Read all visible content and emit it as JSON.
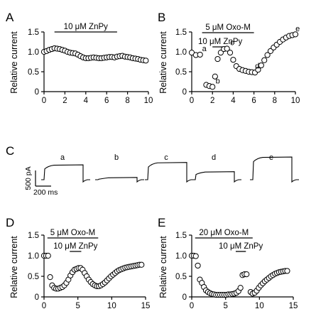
{
  "chart_data": [
    {
      "id": "A",
      "type": "scatter",
      "panel_label": "A",
      "ylabel": "Relative current",
      "xlim": [
        0,
        10
      ],
      "ylim": [
        0,
        1.5
      ],
      "xticks": [
        "0",
        "2",
        "4",
        "6",
        "8",
        "10"
      ],
      "yticks": [
        "0",
        "0.5",
        "1.0",
        "1.5"
      ],
      "annotations": [
        {
          "text": "10 μM ZnPy",
          "x_start": 1.0,
          "x_end": 7.0
        }
      ],
      "x": [
        0.0,
        0.25,
        0.5,
        0.75,
        1.0,
        1.25,
        1.5,
        1.75,
        2.0,
        2.25,
        2.5,
        2.75,
        3.0,
        3.25,
        3.5,
        3.75,
        4.0,
        4.25,
        4.5,
        4.75,
        5.0,
        5.25,
        5.5,
        5.75,
        6.0,
        6.25,
        6.5,
        6.75,
        7.0,
        7.25,
        7.5,
        7.75,
        8.0,
        8.25,
        8.5,
        8.75,
        9.0,
        9.25,
        9.5,
        9.75
      ],
      "y": [
        1.0,
        1.02,
        1.05,
        1.07,
        1.09,
        1.08,
        1.07,
        1.05,
        1.03,
        1.0,
        0.98,
        0.97,
        0.96,
        0.93,
        0.89,
        0.86,
        0.84,
        0.84,
        0.85,
        0.86,
        0.85,
        0.84,
        0.84,
        0.85,
        0.86,
        0.87,
        0.87,
        0.86,
        0.88,
        0.89,
        0.9,
        0.88,
        0.87,
        0.86,
        0.84,
        0.83,
        0.82,
        0.8,
        0.79,
        0.78
      ]
    },
    {
      "id": "B",
      "type": "scatter",
      "panel_label": "B",
      "ylabel": "Relative current",
      "xlim": [
        0,
        10
      ],
      "ylim": [
        0,
        1.5
      ],
      "xticks": [
        "0",
        "2",
        "4",
        "6",
        "8",
        "10"
      ],
      "yticks": [
        "0",
        "0.5",
        "1.0",
        "1.5"
      ],
      "annotations": [
        {
          "text": "5 μM Oxo-M",
          "x_start": 1.0,
          "x_end": 6.0
        },
        {
          "text": "10 μM ZnPy",
          "x_start": 2.0,
          "x_end": 3.5
        }
      ],
      "point_labels": [
        {
          "text": "a",
          "x": 0.8,
          "y": 0.93
        },
        {
          "text": "b",
          "x": 2.1,
          "y": 0.12
        },
        {
          "text": "c",
          "x": 3.5,
          "y": 1.08
        },
        {
          "text": "d",
          "x": 5.9,
          "y": 0.49
        },
        {
          "text": "e",
          "x": 9.8,
          "y": 1.43
        }
      ],
      "x": [
        0.0,
        0.4,
        0.8,
        1.4,
        1.7,
        2.0,
        2.25,
        2.5,
        2.8,
        3.1,
        3.4,
        3.7,
        4.0,
        4.3,
        4.6,
        4.9,
        5.2,
        5.5,
        5.8,
        6.1,
        6.4,
        6.7,
        7.0,
        7.3,
        7.6,
        7.9,
        8.2,
        8.5,
        8.8,
        9.1,
        9.4,
        9.7,
        10.0
      ],
      "y": [
        0.98,
        0.92,
        0.93,
        0.17,
        0.14,
        0.12,
        0.38,
        0.82,
        0.98,
        1.07,
        1.08,
        0.98,
        0.8,
        0.64,
        0.57,
        0.54,
        0.52,
        0.5,
        0.49,
        0.48,
        0.55,
        0.66,
        0.79,
        0.92,
        1.02,
        1.11,
        1.18,
        1.25,
        1.31,
        1.36,
        1.4,
        1.42,
        1.44
      ]
    },
    {
      "id": "C",
      "type": "line",
      "panel_label": "C",
      "scale_bar": {
        "y_label": "500 pA",
        "x_label": "200 ms"
      },
      "traces": [
        {
          "label": "a",
          "amplitude": 0.93
        },
        {
          "label": "b",
          "amplitude": 0.12
        },
        {
          "label": "c",
          "amplitude": 1.08
        },
        {
          "label": "d",
          "amplitude": 0.49
        },
        {
          "label": "e",
          "amplitude": 1.43
        }
      ]
    },
    {
      "id": "D",
      "type": "scatter",
      "panel_label": "D",
      "ylabel": "Relative current",
      "xlim": [
        0,
        15
      ],
      "ylim": [
        0,
        1.5
      ],
      "xticks": [
        "0",
        "5",
        "10",
        "15"
      ],
      "yticks": [
        "0",
        "0.5",
        "1.0",
        "1.5"
      ],
      "annotations": [
        {
          "text": "5 μM Oxo-M",
          "x_start": 0.5,
          "x_end": 8.0
        },
        {
          "text": "10 μM ZnPy",
          "x_start": 3.8,
          "x_end": 5.5
        }
      ],
      "x": [
        0.0,
        0.3,
        0.6,
        0.9,
        1.2,
        1.5,
        1.8,
        2.1,
        2.4,
        2.7,
        3.0,
        3.3,
        3.6,
        3.9,
        4.2,
        4.5,
        4.8,
        5.1,
        5.4,
        5.7,
        6.0,
        6.3,
        6.6,
        6.9,
        7.2,
        7.5,
        7.8,
        8.1,
        8.4,
        8.7,
        9.0,
        9.3,
        9.6,
        9.9,
        10.2,
        10.5,
        10.8,
        11.1,
        11.4,
        11.7,
        12.0,
        12.3,
        12.6,
        12.9,
        13.2,
        13.5,
        13.8,
        14.1,
        14.4
      ],
      "y": [
        1.0,
        1.0,
        1.0,
        0.48,
        0.28,
        0.22,
        0.2,
        0.2,
        0.22,
        0.24,
        0.28,
        0.34,
        0.42,
        0.52,
        0.6,
        0.66,
        0.68,
        0.7,
        0.7,
        0.66,
        0.58,
        0.5,
        0.42,
        0.36,
        0.31,
        0.28,
        0.26,
        0.26,
        0.28,
        0.31,
        0.35,
        0.4,
        0.45,
        0.5,
        0.54,
        0.58,
        0.62,
        0.65,
        0.67,
        0.69,
        0.71,
        0.72,
        0.73,
        0.74,
        0.75,
        0.76,
        0.77,
        0.78,
        0.78
      ]
    },
    {
      "id": "E",
      "type": "scatter",
      "panel_label": "E",
      "ylabel": "Relative current",
      "xlim": [
        0,
        15
      ],
      "ylim": [
        0,
        1.5
      ],
      "xticks": [
        "0",
        "5",
        "10",
        "15"
      ],
      "yticks": [
        "0",
        "0.5",
        "1.0",
        "1.5"
      ],
      "annotations": [
        {
          "text": "20 μM Oxo-M",
          "x_start": 0.5,
          "x_end": 9.0
        },
        {
          "text": "10 μM ZnPy",
          "x_start": 6.5,
          "x_end": 8.0
        }
      ],
      "x": [
        0.0,
        0.3,
        0.6,
        0.9,
        1.2,
        1.5,
        1.8,
        2.1,
        2.4,
        2.7,
        3.0,
        3.3,
        3.6,
        3.9,
        4.2,
        4.5,
        4.8,
        5.1,
        5.4,
        5.7,
        6.0,
        6.3,
        6.6,
        6.9,
        7.2,
        7.5,
        7.8,
        8.1,
        8.7,
        9.0,
        9.3,
        9.6,
        9.9,
        10.2,
        10.5,
        10.8,
        11.1,
        11.4,
        11.7,
        12.0,
        12.3,
        12.6,
        12.9,
        13.2,
        13.5,
        13.8,
        14.1
      ],
      "y": [
        1.0,
        1.0,
        0.99,
        0.76,
        0.42,
        0.34,
        0.24,
        0.16,
        0.12,
        0.09,
        0.07,
        0.06,
        0.05,
        0.05,
        0.05,
        0.05,
        0.05,
        0.05,
        0.06,
        0.06,
        0.07,
        0.08,
        0.1,
        0.14,
        0.22,
        0.53,
        0.55,
        0.55,
        0.12,
        0.08,
        0.1,
        0.15,
        0.22,
        0.28,
        0.33,
        0.38,
        0.42,
        0.46,
        0.5,
        0.53,
        0.56,
        0.58,
        0.6,
        0.61,
        0.62,
        0.63,
        0.63
      ]
    }
  ]
}
